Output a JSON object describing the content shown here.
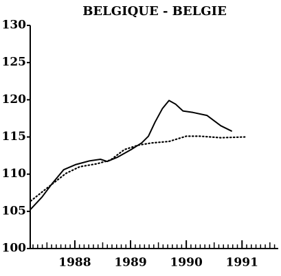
{
  "chart_data": {
    "type": "line",
    "title": "BELGIQUE - BELGIE",
    "series": [
      {
        "color": "#000000",
        "dash": "solid",
        "x": [
          1987.21,
          1987.41,
          1987.59,
          1987.8,
          1988.02,
          1988.27,
          1988.46,
          1988.58,
          1988.77,
          1989.01,
          1989.2,
          1989.32,
          1989.44,
          1989.57,
          1989.69,
          1989.81,
          1989.94,
          1990.12,
          1990.37,
          1990.62,
          1990.81
        ],
        "values": [
          105.3,
          106.9,
          108.7,
          110.6,
          111.3,
          111.8,
          112.0,
          111.7,
          112.3,
          113.3,
          114.2,
          115.1,
          117.0,
          118.8,
          119.9,
          119.4,
          118.5,
          118.3,
          117.9,
          116.5,
          115.8
        ]
      },
      {
        "color": "#000000",
        "dash": "dotted",
        "x": [
          1987.21,
          1987.53,
          1987.84,
          1988.09,
          1988.4,
          1988.64,
          1988.89,
          1989.14,
          1989.38,
          1989.69,
          1990.0,
          1990.25,
          1990.62,
          1991.05
        ],
        "values": [
          106.4,
          108.3,
          110.1,
          111.0,
          111.4,
          111.9,
          113.3,
          113.9,
          114.2,
          114.4,
          115.1,
          115.1,
          114.9,
          115.0
        ]
      }
    ],
    "xlim": [
      1987.2,
      1991.65
    ],
    "xticks": [
      1988,
      1989,
      1990,
      1991
    ],
    "ylim": [
      100,
      130
    ],
    "yticks": [
      100,
      105,
      110,
      115,
      120,
      125,
      130
    ]
  }
}
